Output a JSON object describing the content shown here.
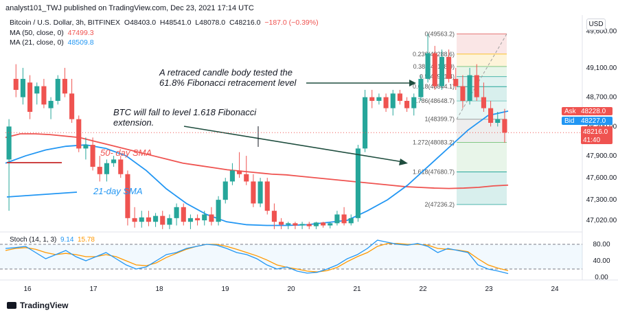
{
  "header": {
    "text": "analyst101_TWJ published on TradingView.com, Dec 23, 2021 17:14 UTC"
  },
  "legend": {
    "symbol": "Bitcoin / U.S. Dollar, 3h, BITFINEX",
    "o_label": "O",
    "o": "48403.0",
    "h_label": "H",
    "h": "48541.0",
    "l_label": "L",
    "l": "48078.0",
    "c_label": "C",
    "c": "48216.0",
    "change": "−187.0 (−0.39%)",
    "ma50_label": "MA (50, close, 0)",
    "ma50_value": "47499.3",
    "ma21_label": "MA (21, close, 0)",
    "ma21_value": "48509.8"
  },
  "currency_button": "USD",
  "price_labels": {
    "ask_label": "Ask",
    "ask_value": "48228.0",
    "bid_label": "Bid",
    "bid_value": "48227.0",
    "last_value": "48216.0",
    "countdown": "41:40"
  },
  "stoch": {
    "label": "Stoch (14, 1, 3)",
    "k": "9.14",
    "d": "15.78",
    "ticks": [
      "80.00",
      "40.00",
      "0.00"
    ]
  },
  "annotations": {
    "retrace_1": "A retraced candle body tested the",
    "retrace_2": "61.8% Fibonacci retracement level",
    "fall_1": "BTC will fall to level 1.618 Fibonacci",
    "fall_2": "extension.",
    "sma50": "50- day SMA",
    "sma21": "21-day SMA"
  },
  "fib_levels": [
    {
      "ratio": "0",
      "price": 49563.2,
      "label": "0(49563.2)"
    },
    {
      "ratio": "0.236",
      "price": 49288.6,
      "label": "0.236(49288.6)"
    },
    {
      "ratio": "0.382",
      "price": 49118.9,
      "label": "0.382(49118.9)"
    },
    {
      "ratio": "0.5",
      "price": 48981.4,
      "label": "0.5(48981.4)"
    },
    {
      "ratio": "0.618",
      "price": 48844.1,
      "label": "0.618(48844.1)"
    },
    {
      "ratio": "0.786",
      "price": 48648.7,
      "label": "0.786(48648.7)"
    },
    {
      "ratio": "1",
      "price": 48399.7,
      "label": "1(48399.7)"
    },
    {
      "ratio": "1.272",
      "price": 48083.2,
      "label": "1.272(48083.2)"
    },
    {
      "ratio": "1.618",
      "price": 47680.7,
      "label": "1.618(47680.7)"
    },
    {
      "ratio": "2",
      "price": 47236.2,
      "label": "2(47236.2)"
    }
  ],
  "branding": "TradingView",
  "colors": {
    "up": "#26a69a",
    "down": "#ef5350",
    "ma50": "#ef5350",
    "ma21": "#2196f3",
    "stoch_k": "#2196f3",
    "stoch_d": "#ff9800",
    "annotation": "#1e4d3e"
  },
  "chart_data": {
    "type": "candlestick",
    "title": "Bitcoin / U.S. Dollar, 3h, BITFINEX",
    "x_ticks": [
      "16",
      "17",
      "18",
      "19",
      "20",
      "21",
      "22",
      "23",
      "24"
    ],
    "y_ticks": [
      49600,
      49100,
      48700,
      48300,
      47900,
      47600,
      47300,
      47020
    ],
    "ylim": [
      46880,
      49820
    ],
    "candles": [
      {
        "o": 47850,
        "h": 48400,
        "l": 47150,
        "c": 48300
      },
      {
        "o": 48950,
        "h": 49150,
        "l": 48700,
        "c": 48800
      },
      {
        "o": 48700,
        "h": 49100,
        "l": 48600,
        "c": 48950
      },
      {
        "o": 48900,
        "h": 49000,
        "l": 48400,
        "c": 48500
      },
      {
        "o": 48750,
        "h": 48900,
        "l": 48600,
        "c": 48850
      },
      {
        "o": 48850,
        "h": 48950,
        "l": 48550,
        "c": 48600
      },
      {
        "o": 48550,
        "h": 48700,
        "l": 48400,
        "c": 48650
      },
      {
        "o": 48650,
        "h": 49000,
        "l": 48600,
        "c": 48950
      },
      {
        "o": 48950,
        "h": 49100,
        "l": 48700,
        "c": 48750
      },
      {
        "o": 48750,
        "h": 48950,
        "l": 48350,
        "c": 48400
      },
      {
        "o": 48400,
        "h": 48450,
        "l": 47950,
        "c": 48000
      },
      {
        "o": 48000,
        "h": 48150,
        "l": 47850,
        "c": 48050
      },
      {
        "o": 48050,
        "h": 48150,
        "l": 47700,
        "c": 47750
      },
      {
        "o": 47750,
        "h": 47900,
        "l": 47550,
        "c": 47650
      },
      {
        "o": 47650,
        "h": 47850,
        "l": 47550,
        "c": 47800
      },
      {
        "o": 47800,
        "h": 47900,
        "l": 47750,
        "c": 47850
      },
      {
        "o": 47850,
        "h": 47900,
        "l": 47600,
        "c": 47650
      },
      {
        "o": 47650,
        "h": 47700,
        "l": 46950,
        "c": 47050
      },
      {
        "o": 47050,
        "h": 47200,
        "l": 46920,
        "c": 47000
      },
      {
        "o": 47000,
        "h": 47150,
        "l": 46920,
        "c": 47060
      },
      {
        "o": 47060,
        "h": 47150,
        "l": 46940,
        "c": 47000
      },
      {
        "o": 47000,
        "h": 47120,
        "l": 46930,
        "c": 47080
      },
      {
        "o": 47080,
        "h": 47150,
        "l": 46900,
        "c": 46960
      },
      {
        "o": 46960,
        "h": 47100,
        "l": 46900,
        "c": 47050
      },
      {
        "o": 47050,
        "h": 47250,
        "l": 46950,
        "c": 47200
      },
      {
        "o": 47200,
        "h": 47250,
        "l": 46950,
        "c": 47000
      },
      {
        "o": 47000,
        "h": 47100,
        "l": 46900,
        "c": 47050
      },
      {
        "o": 47050,
        "h": 47100,
        "l": 46950,
        "c": 47020
      },
      {
        "o": 47020,
        "h": 47150,
        "l": 46950,
        "c": 47100
      },
      {
        "o": 47100,
        "h": 47200,
        "l": 46950,
        "c": 47000
      },
      {
        "o": 47000,
        "h": 47350,
        "l": 46950,
        "c": 47300
      },
      {
        "o": 47300,
        "h": 47600,
        "l": 47250,
        "c": 47550
      },
      {
        "o": 47550,
        "h": 47800,
        "l": 47500,
        "c": 47700
      },
      {
        "o": 47700,
        "h": 47950,
        "l": 47600,
        "c": 47650
      },
      {
        "o": 47650,
        "h": 47900,
        "l": 47500,
        "c": 47550
      },
      {
        "o": 47550,
        "h": 47650,
        "l": 47200,
        "c": 47250
      },
      {
        "o": 47250,
        "h": 47600,
        "l": 47200,
        "c": 47550
      },
      {
        "o": 47550,
        "h": 47600,
        "l": 47100,
        "c": 47150
      },
      {
        "o": 47150,
        "h": 47250,
        "l": 46900,
        "c": 47000
      },
      {
        "o": 47000,
        "h": 47050,
        "l": 46900,
        "c": 46960
      },
      {
        "o": 46960,
        "h": 47000,
        "l": 46900,
        "c": 46980
      },
      {
        "o": 46980,
        "h": 47000,
        "l": 46900,
        "c": 46950
      },
      {
        "o": 46950,
        "h": 47000,
        "l": 46900,
        "c": 46970
      },
      {
        "o": 46970,
        "h": 47000,
        "l": 46900,
        "c": 46940
      },
      {
        "o": 46940,
        "h": 47000,
        "l": 46900,
        "c": 46990
      },
      {
        "o": 46990,
        "h": 47000,
        "l": 46920,
        "c": 46950
      },
      {
        "o": 46950,
        "h": 47000,
        "l": 46910,
        "c": 46980
      },
      {
        "o": 46980,
        "h": 47150,
        "l": 46950,
        "c": 47100
      },
      {
        "o": 47100,
        "h": 47200,
        "l": 46950,
        "c": 46980
      },
      {
        "o": 46980,
        "h": 47100,
        "l": 46950,
        "c": 47050
      },
      {
        "o": 47050,
        "h": 48050,
        "l": 47000,
        "c": 48000
      },
      {
        "o": 48000,
        "h": 48800,
        "l": 47950,
        "c": 48700
      },
      {
        "o": 48700,
        "h": 48800,
        "l": 48550,
        "c": 48650
      },
      {
        "o": 48650,
        "h": 48750,
        "l": 48600,
        "c": 48700
      },
      {
        "o": 48700,
        "h": 48750,
        "l": 48500,
        "c": 48550
      },
      {
        "o": 48550,
        "h": 48800,
        "l": 48450,
        "c": 48750
      },
      {
        "o": 48750,
        "h": 48800,
        "l": 48600,
        "c": 48650
      },
      {
        "o": 48650,
        "h": 48700,
        "l": 48500,
        "c": 48550
      },
      {
        "o": 48550,
        "h": 48750,
        "l": 48450,
        "c": 48700
      },
      {
        "o": 48700,
        "h": 49000,
        "l": 48650,
        "c": 48950
      },
      {
        "o": 48950,
        "h": 49563,
        "l": 48900,
        "c": 49300
      },
      {
        "o": 49300,
        "h": 49400,
        "l": 48800,
        "c": 48850
      },
      {
        "o": 48850,
        "h": 49350,
        "l": 48800,
        "c": 49250
      },
      {
        "o": 49250,
        "h": 49350,
        "l": 48900,
        "c": 48950
      },
      {
        "o": 48950,
        "h": 49100,
        "l": 48800,
        "c": 48850
      },
      {
        "o": 48850,
        "h": 49000,
        "l": 48550,
        "c": 48650
      },
      {
        "o": 48650,
        "h": 49100,
        "l": 48600,
        "c": 49000
      },
      {
        "o": 49000,
        "h": 49150,
        "l": 48650,
        "c": 48700
      },
      {
        "o": 48700,
        "h": 48900,
        "l": 48500,
        "c": 48550
      },
      {
        "o": 48550,
        "h": 48650,
        "l": 48300,
        "c": 48350
      },
      {
        "o": 48350,
        "h": 48500,
        "l": 48300,
        "c": 48400
      },
      {
        "o": 48400,
        "h": 48541,
        "l": 48078,
        "c": 48216
      }
    ],
    "ma50": {
      "name": "MA (50, close, 0)",
      "values": [
        48150,
        48200,
        48200,
        48190,
        48170,
        48150,
        48100,
        48050,
        48000,
        47950,
        47900,
        47850,
        47800,
        47770,
        47740,
        47710,
        47690,
        47670,
        47650,
        47640,
        47620,
        47600,
        47580,
        47560,
        47540,
        47520,
        47500,
        47480,
        47470,
        47460,
        47455,
        47460,
        47470,
        47490,
        47500
      ]
    },
    "ma21": {
      "name": "MA (21, close, 0)",
      "values": [
        47800,
        47900,
        47980,
        48030,
        48050,
        48000,
        47900,
        47700,
        47450,
        47250,
        47100,
        47000,
        46960,
        46950,
        46950,
        46960,
        46990,
        47020,
        47150,
        47300,
        47500,
        47750,
        48000,
        48250,
        48450,
        48510
      ]
    },
    "stoch_k": [
      70,
      72,
      75,
      60,
      45,
      55,
      65,
      50,
      40,
      50,
      60,
      45,
      30,
      20,
      25,
      40,
      55,
      60,
      70,
      75,
      80,
      78,
      70,
      60,
      55,
      45,
      30,
      20,
      25,
      15,
      10,
      12,
      20,
      30,
      45,
      55,
      70,
      90,
      85,
      80,
      78,
      82,
      75,
      60,
      70,
      65,
      60,
      30,
      20,
      15,
      9
    ],
    "stoch_d": [
      65,
      70,
      72,
      68,
      60,
      55,
      58,
      55,
      50,
      50,
      55,
      50,
      40,
      30,
      28,
      35,
      48,
      58,
      68,
      75,
      80,
      80,
      75,
      68,
      60,
      52,
      42,
      30,
      24,
      20,
      15,
      13,
      16,
      24,
      38,
      50,
      60,
      75,
      82,
      82,
      80,
      80,
      78,
      70,
      68,
      66,
      62,
      45,
      30,
      22,
      16
    ],
    "stoch_ylim": [
      0,
      100
    ]
  }
}
